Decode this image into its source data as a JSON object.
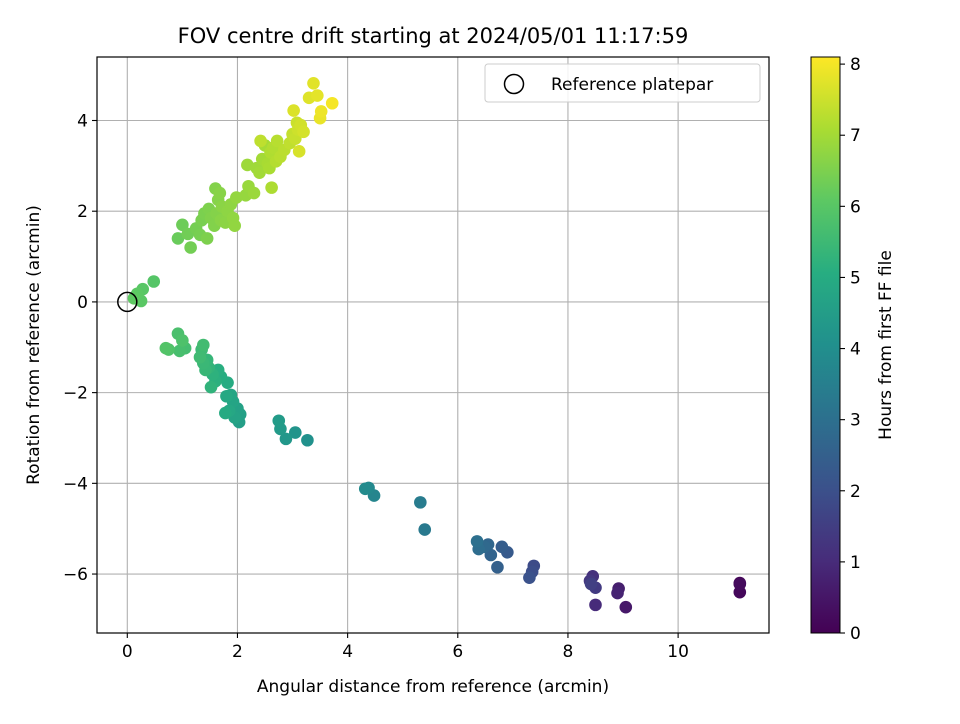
{
  "chart_data": {
    "type": "scatter",
    "title": "FOV centre drift starting at 2024/05/01 11:17:59",
    "xlabel": "Angular distance from reference (arcmin)",
    "ylabel": "Rotation from reference (arcmin)",
    "xlim": [
      -0.55,
      11.65
    ],
    "ylim": [
      -7.3,
      5.4
    ],
    "xticks": [
      0,
      2,
      4,
      6,
      8,
      10
    ],
    "yticks": [
      -6,
      -4,
      -2,
      0,
      2,
      4
    ],
    "xtick_labels": [
      "0",
      "2",
      "4",
      "6",
      "8",
      "10"
    ],
    "ytick_labels": [
      "−6",
      "−4",
      "−2",
      "0",
      "2",
      "4"
    ],
    "grid": true,
    "colormap": "viridis",
    "colorbar": {
      "label": "Hours from first FF file",
      "min": 0,
      "max": 8.1,
      "ticks": [
        0,
        1,
        2,
        3,
        4,
        5,
        6,
        7,
        8
      ],
      "tick_labels": [
        "0",
        "1",
        "2",
        "3",
        "4",
        "5",
        "6",
        "7",
        "8"
      ]
    },
    "legend": {
      "location": "upper right",
      "entries": [
        "Reference platepar"
      ]
    },
    "reference_point": {
      "x": 0,
      "y": 0
    },
    "series": [
      {
        "points": [
          {
            "x": 11.12,
            "y": -6.2,
            "c": 0.05
          },
          {
            "x": 11.12,
            "y": -6.4,
            "c": 0.15
          },
          {
            "x": 11.12,
            "y": -6.22,
            "c": 0.25
          },
          {
            "x": 9.05,
            "y": -6.73,
            "c": 0.55
          },
          {
            "x": 8.92,
            "y": -6.32,
            "c": 0.7
          },
          {
            "x": 8.9,
            "y": -6.42,
            "c": 0.8
          },
          {
            "x": 8.5,
            "y": -6.68,
            "c": 1.0
          },
          {
            "x": 8.45,
            "y": -6.05,
            "c": 1.15
          },
          {
            "x": 8.4,
            "y": -6.15,
            "c": 1.3
          },
          {
            "x": 8.5,
            "y": -6.3,
            "c": 1.4
          },
          {
            "x": 8.42,
            "y": -6.22,
            "c": 1.55
          },
          {
            "x": 7.38,
            "y": -5.82,
            "c": 1.85
          },
          {
            "x": 7.35,
            "y": -5.95,
            "c": 1.95
          },
          {
            "x": 7.3,
            "y": -6.08,
            "c": 2.05
          },
          {
            "x": 6.9,
            "y": -5.52,
            "c": 2.3
          },
          {
            "x": 6.8,
            "y": -5.4,
            "c": 2.4
          },
          {
            "x": 6.72,
            "y": -5.85,
            "c": 2.5
          },
          {
            "x": 6.6,
            "y": -5.58,
            "c": 2.6
          },
          {
            "x": 6.55,
            "y": -5.35,
            "c": 2.7
          },
          {
            "x": 6.48,
            "y": -5.4,
            "c": 2.8
          },
          {
            "x": 6.38,
            "y": -5.45,
            "c": 2.9
          },
          {
            "x": 6.35,
            "y": -5.28,
            "c": 3.0
          },
          {
            "x": 5.4,
            "y": -5.02,
            "c": 3.3
          },
          {
            "x": 5.32,
            "y": -4.42,
            "c": 3.4
          },
          {
            "x": 4.48,
            "y": -4.27,
            "c": 3.7
          },
          {
            "x": 4.38,
            "y": -4.1,
            "c": 3.8
          },
          {
            "x": 4.32,
            "y": -4.12,
            "c": 3.9
          },
          {
            "x": 3.27,
            "y": -3.05,
            "c": 4.1
          },
          {
            "x": 3.05,
            "y": -2.88,
            "c": 4.2
          },
          {
            "x": 2.88,
            "y": -3.02,
            "c": 4.3
          },
          {
            "x": 2.78,
            "y": -2.8,
            "c": 4.4
          },
          {
            "x": 2.75,
            "y": -2.62,
            "c": 4.45
          },
          {
            "x": 2.03,
            "y": -2.65,
            "c": 4.55
          },
          {
            "x": 2.05,
            "y": -2.48,
            "c": 4.6
          },
          {
            "x": 2.0,
            "y": -2.35,
            "c": 4.65
          },
          {
            "x": 1.95,
            "y": -2.55,
            "c": 4.7
          },
          {
            "x": 1.92,
            "y": -2.2,
            "c": 4.75
          },
          {
            "x": 1.88,
            "y": -2.05,
            "c": 4.8
          },
          {
            "x": 1.85,
            "y": -2.4,
            "c": 4.85
          },
          {
            "x": 1.8,
            "y": -2.08,
            "c": 4.9
          },
          {
            "x": 1.78,
            "y": -2.45,
            "c": 4.95
          },
          {
            "x": 1.82,
            "y": -1.78,
            "c": 5.0
          },
          {
            "x": 1.7,
            "y": -1.65,
            "c": 5.05
          },
          {
            "x": 1.65,
            "y": -1.5,
            "c": 5.1
          },
          {
            "x": 1.6,
            "y": -1.75,
            "c": 5.15
          },
          {
            "x": 1.55,
            "y": -1.6,
            "c": 5.2
          },
          {
            "x": 1.52,
            "y": -1.88,
            "c": 5.25
          },
          {
            "x": 1.48,
            "y": -1.45,
            "c": 5.3
          },
          {
            "x": 1.45,
            "y": -1.28,
            "c": 5.35
          },
          {
            "x": 1.42,
            "y": -1.5,
            "c": 5.4
          },
          {
            "x": 1.38,
            "y": -1.35,
            "c": 5.45
          },
          {
            "x": 1.35,
            "y": -1.05,
            "c": 5.5
          },
          {
            "x": 1.32,
            "y": -1.22,
            "c": 5.55
          },
          {
            "x": 1.38,
            "y": -0.95,
            "c": 5.6
          },
          {
            "x": 1.05,
            "y": -1.02,
            "c": 5.65
          },
          {
            "x": 0.95,
            "y": -1.08,
            "c": 5.7
          },
          {
            "x": 0.92,
            "y": -0.7,
            "c": 5.75
          },
          {
            "x": 1.0,
            "y": -0.85,
            "c": 5.8
          },
          {
            "x": 0.75,
            "y": -1.05,
            "c": 5.85
          },
          {
            "x": 0.7,
            "y": -1.02,
            "c": 5.9
          },
          {
            "x": 0.48,
            "y": 0.45,
            "c": 5.95
          },
          {
            "x": 0.28,
            "y": 0.28,
            "c": 6.0
          },
          {
            "x": 0.25,
            "y": 0.02,
            "c": 6.03
          },
          {
            "x": 0.18,
            "y": 0.18,
            "c": 6.06
          },
          {
            "x": 0.12,
            "y": 0.08,
            "c": 6.1
          },
          {
            "x": 0.92,
            "y": 1.4,
            "c": 6.25
          },
          {
            "x": 1.0,
            "y": 1.7,
            "c": 6.3
          },
          {
            "x": 1.1,
            "y": 1.5,
            "c": 6.35
          },
          {
            "x": 1.15,
            "y": 1.2,
            "c": 6.38
          },
          {
            "x": 1.25,
            "y": 1.62,
            "c": 6.4
          },
          {
            "x": 1.32,
            "y": 1.48,
            "c": 6.42
          },
          {
            "x": 1.35,
            "y": 1.8,
            "c": 6.45
          },
          {
            "x": 1.4,
            "y": 1.95,
            "c": 6.48
          },
          {
            "x": 1.45,
            "y": 1.4,
            "c": 6.5
          },
          {
            "x": 1.48,
            "y": 2.05,
            "c": 6.52
          },
          {
            "x": 1.52,
            "y": 1.85,
            "c": 6.55
          },
          {
            "x": 1.58,
            "y": 1.68,
            "c": 6.57
          },
          {
            "x": 1.6,
            "y": 2.5,
            "c": 6.58
          },
          {
            "x": 1.62,
            "y": 1.95,
            "c": 6.6
          },
          {
            "x": 1.65,
            "y": 2.25,
            "c": 6.62
          },
          {
            "x": 1.68,
            "y": 2.4,
            "c": 6.64
          },
          {
            "x": 1.7,
            "y": 1.8,
            "c": 6.66
          },
          {
            "x": 1.72,
            "y": 2.1,
            "c": 6.68
          },
          {
            "x": 1.78,
            "y": 1.75,
            "c": 6.7
          },
          {
            "x": 1.82,
            "y": 2.0,
            "c": 6.72
          },
          {
            "x": 1.88,
            "y": 2.15,
            "c": 6.74
          },
          {
            "x": 1.92,
            "y": 1.85,
            "c": 6.76
          },
          {
            "x": 1.95,
            "y": 1.68,
            "c": 6.78
          },
          {
            "x": 1.98,
            "y": 2.3,
            "c": 6.8
          },
          {
            "x": 2.15,
            "y": 2.35,
            "c": 6.83
          },
          {
            "x": 2.2,
            "y": 2.55,
            "c": 6.86
          },
          {
            "x": 2.3,
            "y": 2.4,
            "c": 6.89
          },
          {
            "x": 2.18,
            "y": 3.02,
            "c": 6.92
          },
          {
            "x": 2.35,
            "y": 2.95,
            "c": 6.95
          },
          {
            "x": 2.4,
            "y": 2.85,
            "c": 6.98
          },
          {
            "x": 2.45,
            "y": 3.15,
            "c": 7.0
          },
          {
            "x": 2.5,
            "y": 3.45,
            "c": 7.03
          },
          {
            "x": 2.55,
            "y": 3.05,
            "c": 7.06
          },
          {
            "x": 2.58,
            "y": 2.95,
            "c": 7.09
          },
          {
            "x": 2.62,
            "y": 2.52,
            "c": 7.12
          },
          {
            "x": 2.6,
            "y": 3.3,
            "c": 7.15
          },
          {
            "x": 2.65,
            "y": 3.4,
            "c": 7.18
          },
          {
            "x": 2.7,
            "y": 3.1,
            "c": 7.21
          },
          {
            "x": 2.72,
            "y": 3.55,
            "c": 7.24
          },
          {
            "x": 2.78,
            "y": 3.2,
            "c": 7.27
          },
          {
            "x": 2.85,
            "y": 3.35,
            "c": 7.3
          },
          {
            "x": 2.42,
            "y": 3.55,
            "c": 7.33
          },
          {
            "x": 2.95,
            "y": 3.5,
            "c": 7.36
          },
          {
            "x": 3.0,
            "y": 3.7,
            "c": 7.4
          },
          {
            "x": 3.05,
            "y": 3.6,
            "c": 7.44
          },
          {
            "x": 3.08,
            "y": 3.95,
            "c": 7.48
          },
          {
            "x": 3.1,
            "y": 3.8,
            "c": 7.52
          },
          {
            "x": 3.15,
            "y": 3.9,
            "c": 7.56
          },
          {
            "x": 3.2,
            "y": 3.75,
            "c": 7.6
          },
          {
            "x": 3.12,
            "y": 3.32,
            "c": 7.64
          },
          {
            "x": 3.02,
            "y": 4.22,
            "c": 7.68
          },
          {
            "x": 3.3,
            "y": 4.5,
            "c": 7.72
          },
          {
            "x": 3.38,
            "y": 4.82,
            "c": 7.76
          },
          {
            "x": 3.45,
            "y": 4.55,
            "c": 7.8
          },
          {
            "x": 3.5,
            "y": 4.05,
            "c": 7.85
          },
          {
            "x": 3.52,
            "y": 4.2,
            "c": 7.9
          },
          {
            "x": 3.72,
            "y": 4.38,
            "c": 8.0
          }
        ]
      }
    ]
  }
}
